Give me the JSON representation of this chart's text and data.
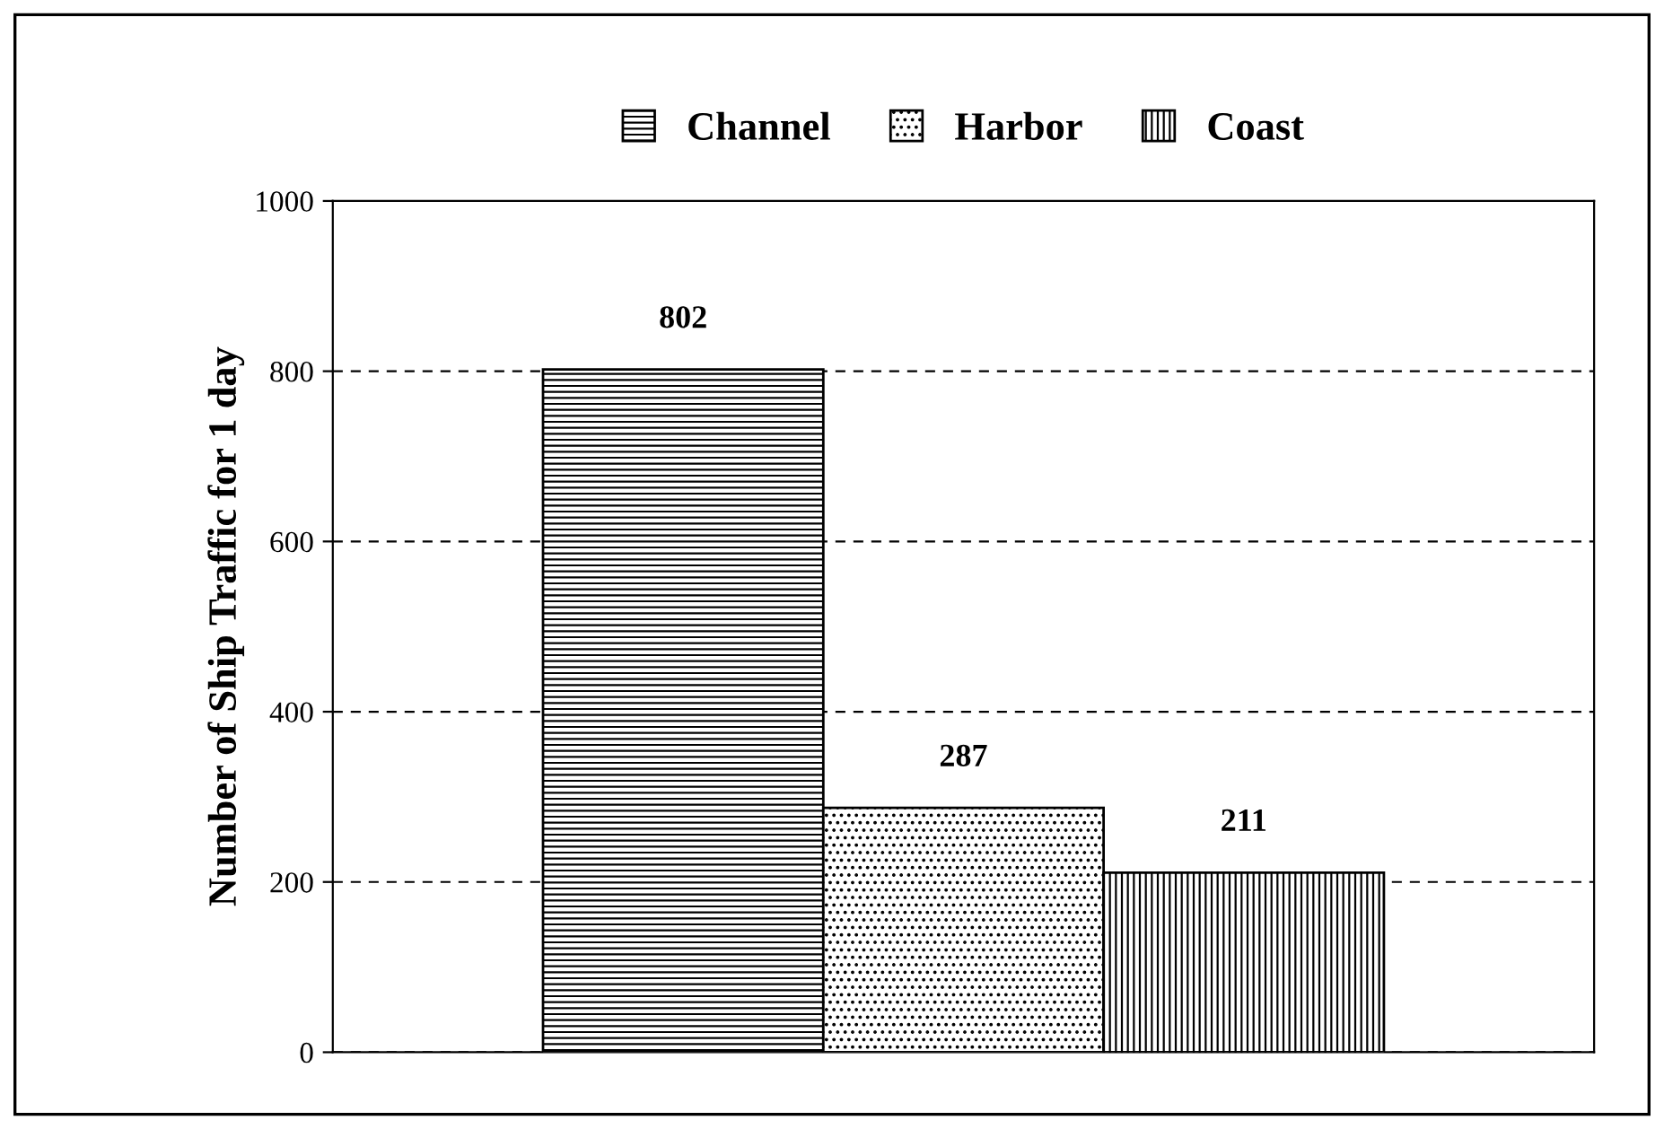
{
  "chart_data": {
    "type": "bar",
    "ylabel": "Number of Ship Traffic for 1 day",
    "categories": [
      null
    ],
    "series": [
      {
        "name": "Channel",
        "color": "#000000",
        "values": [
          802
        ]
      },
      {
        "name": "Harbor",
        "color": "#000000",
        "values": [
          287
        ]
      },
      {
        "name": "Coast",
        "color": "#000000",
        "values": [
          211
        ]
      }
    ],
    "ylim": [
      0,
      1000
    ],
    "yticks": [
      0,
      200,
      400,
      600,
      800,
      1000
    ],
    "grid": "y",
    "legend": "top",
    "data_labels": true
  }
}
